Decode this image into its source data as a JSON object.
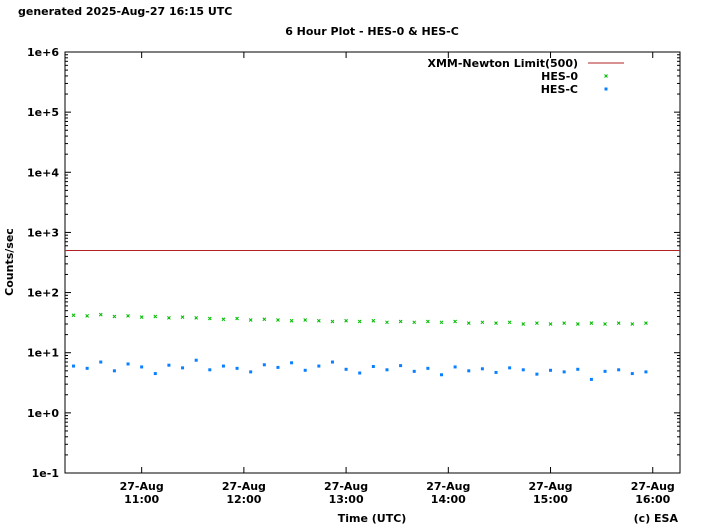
{
  "chart_data": {
    "type": "scatter",
    "generated": "generated 2025-Aug-27 16:15 UTC",
    "title": "6 Hour Plot - HES-0 & HES-C",
    "x_label": "Time (UTC)",
    "y_label": "Counts/sec",
    "credit": "(c) ESA",
    "log_y": true,
    "legend": "top-right",
    "xlim": [
      "10:15",
      "16:16"
    ],
    "xticks": [
      {
        "date": "27-Aug",
        "time": "11:00"
      },
      {
        "date": "27-Aug",
        "time": "12:00"
      },
      {
        "date": "27-Aug",
        "time": "13:00"
      },
      {
        "date": "27-Aug",
        "time": "14:00"
      },
      {
        "date": "27-Aug",
        "time": "15:00"
      },
      {
        "date": "27-Aug",
        "time": "16:00"
      }
    ],
    "ylim": [
      0.1,
      1000000
    ],
    "yticks": [
      {
        "value": 0.1,
        "label": "1e-1"
      },
      {
        "value": 1,
        "label": "1e+0"
      },
      {
        "value": 10,
        "label": "1e+1"
      },
      {
        "value": 100,
        "label": "1e+2"
      },
      {
        "value": 1000,
        "label": "1e+3"
      },
      {
        "value": 10000,
        "label": "1e+4"
      },
      {
        "value": 100000,
        "label": "1e+5"
      },
      {
        "value": 1000000,
        "label": "1e+6"
      }
    ],
    "limit": {
      "name": "XMM-Newton Limit(500)",
      "value": 500,
      "color": "#b22222"
    },
    "x": [
      "10:20",
      "10:28",
      "10:36",
      "10:44",
      "10:52",
      "11:00",
      "11:08",
      "11:16",
      "11:24",
      "11:32",
      "11:40",
      "11:48",
      "11:56",
      "12:04",
      "12:12",
      "12:20",
      "12:28",
      "12:36",
      "12:44",
      "12:52",
      "13:00",
      "13:08",
      "13:16",
      "13:24",
      "13:32",
      "13:40",
      "13:48",
      "13:56",
      "14:04",
      "14:12",
      "14:20",
      "14:28",
      "14:36",
      "14:44",
      "14:52",
      "15:00",
      "15:08",
      "15:16",
      "15:24",
      "15:32",
      "15:40",
      "15:48",
      "15:56"
    ],
    "series": [
      {
        "name": "HES-0",
        "color": "#00bb00",
        "marker": "cross",
        "values": [
          42,
          41,
          43,
          40,
          41,
          39,
          40,
          38,
          39,
          38,
          37,
          36,
          37,
          35,
          36,
          35,
          34,
          35,
          34,
          33,
          34,
          33,
          34,
          32,
          33,
          32,
          33,
          32,
          33,
          31,
          32,
          31,
          32,
          30,
          31,
          30,
          31,
          30,
          31,
          30,
          31,
          30,
          31
        ]
      },
      {
        "name": "HES-C",
        "color": "#0a7fff",
        "marker": "square",
        "values": [
          6,
          5.5,
          7,
          5,
          6.5,
          5.8,
          4.5,
          6.2,
          5.6,
          7.5,
          5.2,
          6,
          5.5,
          4.8,
          6.3,
          5.7,
          6.8,
          5.1,
          6,
          7,
          5.3,
          4.6,
          5.9,
          5.2,
          6.1,
          4.9,
          5.5,
          4.3,
          5.8,
          5,
          5.4,
          4.7,
          5.6,
          5.2,
          4.4,
          5.1,
          4.8,
          5.3,
          3.6,
          4.9,
          5.2,
          4.5,
          4.8
        ]
      }
    ]
  }
}
